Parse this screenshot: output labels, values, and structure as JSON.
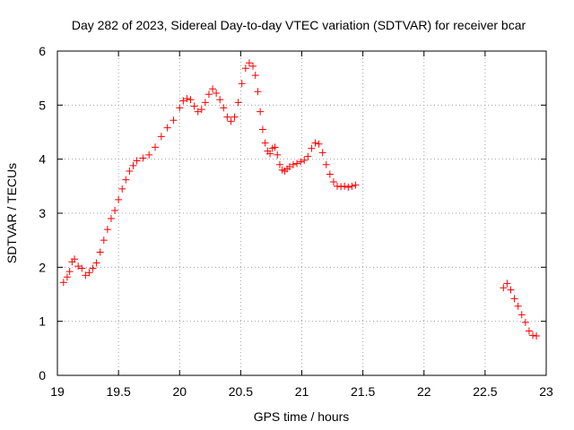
{
  "chart_data": {
    "type": "scatter",
    "title": "Day 282 of 2023, Sidereal Day-to-day VTEC variation (SDTVAR) for receiver bcar",
    "xlabel": "GPS time / hours",
    "ylabel": "SDTVAR / TECUs",
    "xlim": [
      19,
      23
    ],
    "ylim": [
      0,
      6
    ],
    "grid": true,
    "marker": "plus",
    "series_color": "#ff0000",
    "xticks": [
      {
        "value": 19,
        "label": "19"
      },
      {
        "value": 19.5,
        "label": "19.5"
      },
      {
        "value": 20,
        "label": "20"
      },
      {
        "value": 20.5,
        "label": "20.5"
      },
      {
        "value": 21,
        "label": "21"
      },
      {
        "value": 21.5,
        "label": "21.5"
      },
      {
        "value": 22,
        "label": "22"
      },
      {
        "value": 22.5,
        "label": "22.5"
      },
      {
        "value": 23,
        "label": "23"
      }
    ],
    "yticks": [
      {
        "value": 0,
        "label": "0"
      },
      {
        "value": 1,
        "label": "1"
      },
      {
        "value": 2,
        "label": "2"
      },
      {
        "value": 3,
        "label": "3"
      },
      {
        "value": 4,
        "label": "4"
      },
      {
        "value": 5,
        "label": "5"
      },
      {
        "value": 6,
        "label": "6"
      }
    ],
    "series": [
      {
        "name": "SDTVAR segment 1",
        "x": [
          19.05,
          19.08,
          19.1,
          19.12,
          19.14,
          19.17,
          19.2,
          19.23,
          19.26,
          19.29,
          19.32,
          19.35,
          19.38,
          19.41,
          19.44,
          19.47,
          19.5,
          19.53,
          19.56,
          19.59,
          19.62,
          19.65,
          19.7,
          19.75,
          19.8,
          19.85,
          19.9,
          19.95,
          20.0,
          20.03,
          20.06,
          20.09,
          20.12,
          20.15,
          20.18,
          20.21,
          20.24,
          20.27,
          20.3,
          20.33,
          20.36,
          20.39,
          20.42,
          20.45,
          20.48,
          20.51,
          20.54,
          20.57,
          20.6,
          20.62,
          20.64,
          20.66,
          20.68,
          20.7,
          20.72,
          20.74,
          20.76,
          20.78,
          20.8,
          20.82,
          20.84,
          20.86,
          20.88,
          20.9,
          20.93,
          20.96,
          20.99,
          21.02,
          21.05,
          21.08,
          21.11,
          21.14,
          21.17,
          21.2,
          21.23,
          21.26,
          21.29,
          21.32,
          21.35,
          21.38,
          21.41,
          21.44
        ],
        "y": [
          1.72,
          1.82,
          1.92,
          2.1,
          2.15,
          2.02,
          1.98,
          1.85,
          1.9,
          1.98,
          2.08,
          2.28,
          2.5,
          2.7,
          2.9,
          3.05,
          3.25,
          3.45,
          3.62,
          3.78,
          3.88,
          3.97,
          4.02,
          4.08,
          4.22,
          4.42,
          4.58,
          4.72,
          4.95,
          5.08,
          5.12,
          5.1,
          4.98,
          4.88,
          4.92,
          5.05,
          5.2,
          5.3,
          5.22,
          5.1,
          4.95,
          4.78,
          4.7,
          4.78,
          5.05,
          5.4,
          5.68,
          5.78,
          5.72,
          5.55,
          5.25,
          4.88,
          4.55,
          4.3,
          4.15,
          4.1,
          4.2,
          4.22,
          4.08,
          3.9,
          3.8,
          3.78,
          3.82,
          3.86,
          3.9,
          3.92,
          3.95,
          3.98,
          4.05,
          4.2,
          4.3,
          4.28,
          4.12,
          3.9,
          3.72,
          3.58,
          3.5,
          3.49,
          3.5,
          3.48,
          3.5,
          3.52
        ]
      },
      {
        "name": "SDTVAR segment 2",
        "x": [
          22.65,
          22.68,
          22.71,
          22.74,
          22.77,
          22.8,
          22.83,
          22.86,
          22.89,
          22.92
        ],
        "y": [
          1.62,
          1.7,
          1.58,
          1.42,
          1.28,
          1.12,
          0.98,
          0.82,
          0.74,
          0.73
        ]
      }
    ]
  }
}
